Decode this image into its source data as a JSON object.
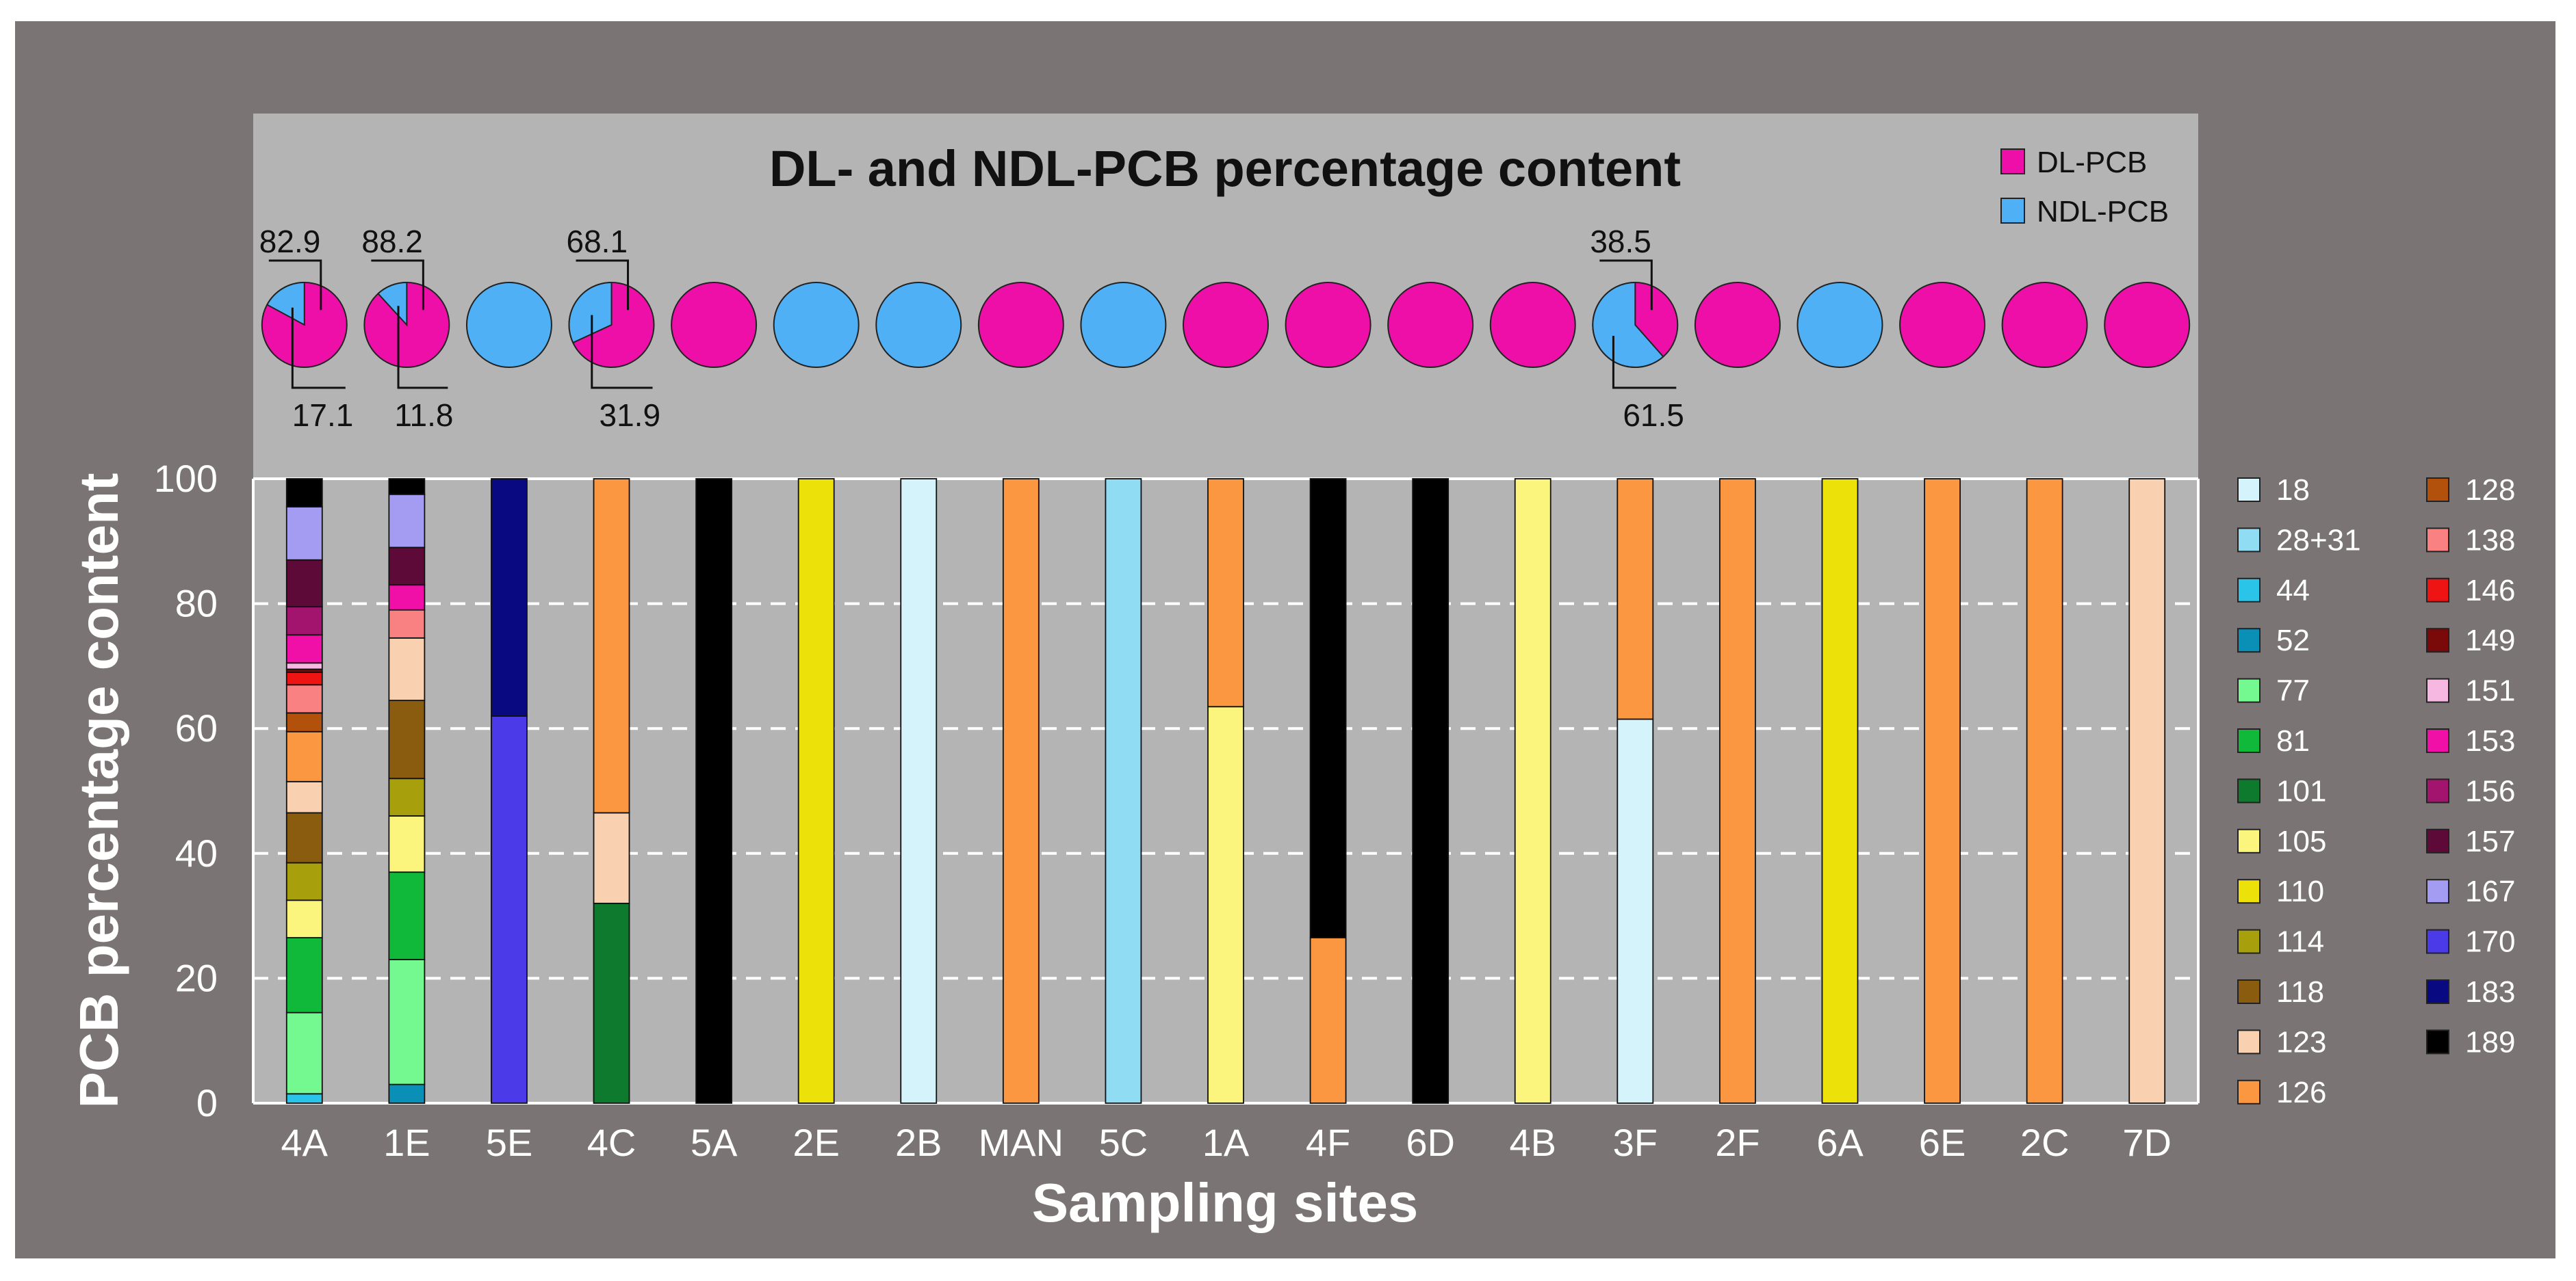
{
  "chart_data": {
    "type": "stacked-bar",
    "title": "DL- and NDL-PCB percentage content",
    "xlabel": "Sampling sites",
    "ylabel": "PCB percentage content",
    "ylim": [
      0,
      100
    ],
    "yticks": [
      "0",
      "20",
      "40",
      "60",
      "80",
      "100"
    ],
    "grid": "dashed horizontal",
    "sites": [
      "4A",
      "1E",
      "5E",
      "4C",
      "5A",
      "2E",
      "2B",
      "MAN",
      "5C",
      "1A",
      "4F",
      "6D",
      "4B",
      "3F",
      "2F",
      "6A",
      "6E",
      "2C",
      "7D"
    ],
    "congeners": [
      {
        "name": "18",
        "color": "#d5f3fb"
      },
      {
        "name": "28+31",
        "color": "#8fdcf3"
      },
      {
        "name": "44",
        "color": "#29c4e8"
      },
      {
        "name": "52",
        "color": "#0a8fb6"
      },
      {
        "name": "77",
        "color": "#74f990"
      },
      {
        "name": "81",
        "color": "#10b93a"
      },
      {
        "name": "101",
        "color": "#0e7a2e"
      },
      {
        "name": "105",
        "color": "#fbf57e"
      },
      {
        "name": "110",
        "color": "#ede10a"
      },
      {
        "name": "114",
        "color": "#a79f0c"
      },
      {
        "name": "118",
        "color": "#8a5c10"
      },
      {
        "name": "123",
        "color": "#f9d0b0"
      },
      {
        "name": "126",
        "color": "#fb9740"
      },
      {
        "name": "128",
        "color": "#b1510b"
      },
      {
        "name": "138",
        "color": "#f98181"
      },
      {
        "name": "146",
        "color": "#ef1414"
      },
      {
        "name": "149",
        "color": "#7a0909"
      },
      {
        "name": "151",
        "color": "#f6b8e0"
      },
      {
        "name": "153",
        "color": "#f010a8"
      },
      {
        "name": "156",
        "color": "#a3146f"
      },
      {
        "name": "157",
        "color": "#5e0a38"
      },
      {
        "name": "167",
        "color": "#a49cf3"
      },
      {
        "name": "170",
        "color": "#4a3ae8"
      },
      {
        "name": "183",
        "color": "#090a82"
      },
      {
        "name": "189",
        "color": "#000000"
      }
    ],
    "series": [
      {
        "site": "4A",
        "segments": [
          {
            "congener": "44",
            "value": 1.5
          },
          {
            "congener": "77",
            "value": 13
          },
          {
            "congener": "81",
            "value": 12
          },
          {
            "congener": "105",
            "value": 6
          },
          {
            "congener": "114",
            "value": 6
          },
          {
            "congener": "118",
            "value": 8
          },
          {
            "congener": "123",
            "value": 5
          },
          {
            "congener": "126",
            "value": 8
          },
          {
            "congener": "128",
            "value": 3
          },
          {
            "congener": "138",
            "value": 4.5
          },
          {
            "congener": "146",
            "value": 2
          },
          {
            "congener": "149",
            "value": 0.5
          },
          {
            "congener": "151",
            "value": 1
          },
          {
            "congener": "153",
            "value": 4.5
          },
          {
            "congener": "156",
            "value": 4.5
          },
          {
            "congener": "157",
            "value": 7.5
          },
          {
            "congener": "167",
            "value": 8.5
          },
          {
            "congener": "189",
            "value": 4.5
          }
        ]
      },
      {
        "site": "1E",
        "segments": [
          {
            "congener": "52",
            "value": 3
          },
          {
            "congener": "77",
            "value": 20
          },
          {
            "congener": "81",
            "value": 14
          },
          {
            "congener": "105",
            "value": 9
          },
          {
            "congener": "114",
            "value": 6
          },
          {
            "congener": "118",
            "value": 12.5
          },
          {
            "congener": "123",
            "value": 10
          },
          {
            "congener": "138",
            "value": 4.5
          },
          {
            "congener": "153",
            "value": 4
          },
          {
            "congener": "157",
            "value": 6
          },
          {
            "congener": "167",
            "value": 8.5
          },
          {
            "congener": "189",
            "value": 2.5
          }
        ]
      },
      {
        "site": "5E",
        "segments": [
          {
            "congener": "170",
            "value": 62
          },
          {
            "congener": "183",
            "value": 38
          }
        ]
      },
      {
        "site": "4C",
        "segments": [
          {
            "congener": "101",
            "value": 32
          },
          {
            "congener": "123",
            "value": 14.5
          },
          {
            "congener": "126",
            "value": 53.5
          }
        ]
      },
      {
        "site": "5A",
        "segments": [
          {
            "congener": "189",
            "value": 100
          }
        ]
      },
      {
        "site": "2E",
        "segments": [
          {
            "congener": "110",
            "value": 100
          }
        ]
      },
      {
        "site": "2B",
        "segments": [
          {
            "congener": "18",
            "value": 100
          }
        ]
      },
      {
        "site": "MAN",
        "segments": [
          {
            "congener": "126",
            "value": 100
          }
        ]
      },
      {
        "site": "5C",
        "segments": [
          {
            "congener": "28+31",
            "value": 100
          }
        ]
      },
      {
        "site": "1A",
        "segments": [
          {
            "congener": "105",
            "value": 63.5
          },
          {
            "congener": "126",
            "value": 36.5
          }
        ]
      },
      {
        "site": "4F",
        "segments": [
          {
            "congener": "126",
            "value": 26.5
          },
          {
            "congener": "189",
            "value": 73.5
          }
        ]
      },
      {
        "site": "6D",
        "segments": [
          {
            "congener": "189",
            "value": 100
          }
        ]
      },
      {
        "site": "4B",
        "segments": [
          {
            "congener": "105",
            "value": 100
          }
        ]
      },
      {
        "site": "3F",
        "segments": [
          {
            "congener": "18",
            "value": 61.5
          },
          {
            "congener": "126",
            "value": 38.5
          }
        ]
      },
      {
        "site": "2F",
        "segments": [
          {
            "congener": "126",
            "value": 100
          }
        ]
      },
      {
        "site": "6A",
        "segments": [
          {
            "congener": "110",
            "value": 100
          }
        ]
      },
      {
        "site": "6E",
        "segments": [
          {
            "congener": "126",
            "value": 100
          }
        ]
      },
      {
        "site": "2C",
        "segments": [
          {
            "congener": "126",
            "value": 100
          }
        ]
      },
      {
        "site": "7D",
        "segments": [
          {
            "congener": "123",
            "value": 100
          }
        ]
      }
    ],
    "pie_legend": [
      {
        "name": "DL-PCB",
        "color": "#ee0fa8"
      },
      {
        "name": "NDL-PCB",
        "color": "#4fb0f5"
      }
    ],
    "pies": [
      {
        "site": "4A",
        "dl": 82.9,
        "ndl": 17.1,
        "label_dl": "82.9",
        "label_ndl": "17.1"
      },
      {
        "site": "1E",
        "dl": 88.2,
        "ndl": 11.8,
        "label_dl": "88.2",
        "label_ndl": "11.8"
      },
      {
        "site": "5E",
        "dl": 0,
        "ndl": 100
      },
      {
        "site": "4C",
        "dl": 68.1,
        "ndl": 31.9,
        "label_dl": "68.1",
        "label_ndl": "31.9"
      },
      {
        "site": "5A",
        "dl": 100,
        "ndl": 0
      },
      {
        "site": "2E",
        "dl": 0,
        "ndl": 100
      },
      {
        "site": "2B",
        "dl": 0,
        "ndl": 100
      },
      {
        "site": "MAN",
        "dl": 100,
        "ndl": 0
      },
      {
        "site": "5C",
        "dl": 0,
        "ndl": 100
      },
      {
        "site": "1A",
        "dl": 100,
        "ndl": 0
      },
      {
        "site": "4F",
        "dl": 100,
        "ndl": 0
      },
      {
        "site": "6D",
        "dl": 100,
        "ndl": 0
      },
      {
        "site": "4B",
        "dl": 100,
        "ndl": 0
      },
      {
        "site": "3F",
        "dl": 38.5,
        "ndl": 61.5,
        "label_dl": "38.5",
        "label_ndl": "61.5"
      },
      {
        "site": "2F",
        "dl": 100,
        "ndl": 0
      },
      {
        "site": "6A",
        "dl": 0,
        "ndl": 100
      },
      {
        "site": "6E",
        "dl": 100,
        "ndl": 0
      },
      {
        "site": "2C",
        "dl": 100,
        "ndl": 0
      },
      {
        "site": "7D",
        "dl": 100,
        "ndl": 0
      }
    ]
  }
}
